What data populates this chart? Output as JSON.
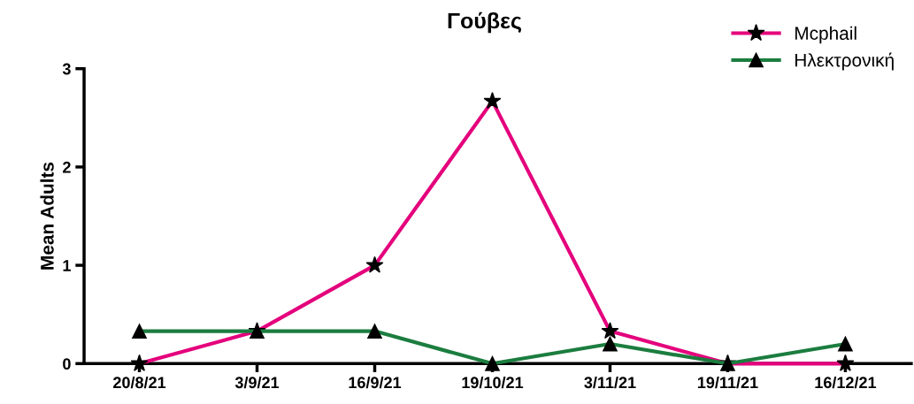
{
  "chart_data": {
    "type": "line",
    "title": "Γούβες",
    "ylabel": "Mean Adults",
    "categories": [
      "20/8/21",
      "3/9/21",
      "16/9/21",
      "19/10/21",
      "3/11/21",
      "19/11/21",
      "16/12/21"
    ],
    "series": [
      {
        "name": "Mcphail",
        "color": "#e4007c",
        "marker": "star",
        "values": [
          0,
          0.33,
          1,
          2.67,
          0.33,
          0,
          0
        ]
      },
      {
        "name": "Ηλεκτρονική",
        "color": "#1b7d3f",
        "marker": "triangle",
        "values": [
          0.33,
          0.33,
          0.33,
          0,
          0.2,
          0,
          0.2
        ]
      }
    ],
    "ylim": [
      0,
      3
    ],
    "yticks": [
      0,
      1,
      2,
      3
    ],
    "grid": false,
    "legend": "top right"
  }
}
